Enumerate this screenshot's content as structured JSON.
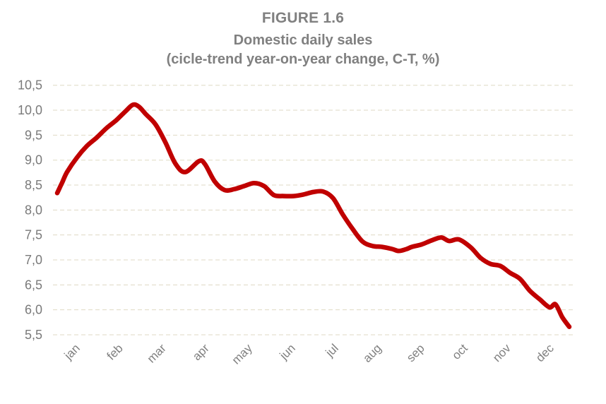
{
  "header": {
    "figure_label": "FIGURE 1.6",
    "title": "Domestic daily sales",
    "subtitle": "(cicle-trend year-on-year change, C-T, %)"
  },
  "colors": {
    "line": "#C00000",
    "text_gray": "#808080",
    "tick_gray": "#7a7a7a",
    "gridline": "#DFDAC4",
    "background": "#FFFFFF"
  },
  "chart_data": {
    "type": "line",
    "title": "FIGURE 1.6",
    "subtitle": "Domestic daily sales (cicle-trend year-on-year change, C-T, %)",
    "xlabel": "",
    "ylabel": "",
    "x_categories": [
      "jan",
      "feb",
      "mar",
      "apr",
      "may",
      "jun",
      "jul",
      "aug",
      "sep",
      "oct",
      "nov",
      "dec"
    ],
    "y_tick_labels": [
      "10,5",
      "10,0",
      "9,5",
      "9,0",
      "8,5",
      "8,0",
      "7,5",
      "7,0",
      "6,5",
      "6,0",
      "5,5"
    ],
    "ylim": [
      5.5,
      10.5
    ],
    "grid": "horizontal-dashed",
    "legend_position": "none",
    "decimal_separator": ",",
    "series": [
      {
        "name": "Domestic daily sales, cycle-trend year-on-year change (%)",
        "x_unit": "week of year",
        "points": [
          [
            1,
            8.34
          ],
          [
            1.5,
            8.55
          ],
          [
            2,
            8.76
          ],
          [
            3,
            9.05
          ],
          [
            4,
            9.28
          ],
          [
            5,
            9.45
          ],
          [
            6,
            9.64
          ],
          [
            7,
            9.8
          ],
          [
            8,
            9.99
          ],
          [
            8.7,
            10.11
          ],
          [
            9.3,
            10.07
          ],
          [
            10,
            9.92
          ],
          [
            11,
            9.71
          ],
          [
            12,
            9.35
          ],
          [
            13,
            8.93
          ],
          [
            14,
            8.76
          ],
          [
            15.4,
            8.98
          ],
          [
            16,
            8.92
          ],
          [
            17,
            8.57
          ],
          [
            18,
            8.4
          ],
          [
            19,
            8.42
          ],
          [
            20,
            8.48
          ],
          [
            21,
            8.54
          ],
          [
            22,
            8.48
          ],
          [
            23,
            8.3
          ],
          [
            24,
            8.28
          ],
          [
            25,
            8.28
          ],
          [
            26,
            8.31
          ],
          [
            27,
            8.36
          ],
          [
            28,
            8.37
          ],
          [
            29,
            8.24
          ],
          [
            30,
            7.91
          ],
          [
            31,
            7.62
          ],
          [
            32,
            7.37
          ],
          [
            33,
            7.28
          ],
          [
            34,
            7.26
          ],
          [
            35,
            7.22
          ],
          [
            35.7,
            7.18
          ],
          [
            36.5,
            7.22
          ],
          [
            37,
            7.26
          ],
          [
            38,
            7.31
          ],
          [
            39,
            7.39
          ],
          [
            40,
            7.45
          ],
          [
            40.8,
            7.38
          ],
          [
            41.8,
            7.41
          ],
          [
            43,
            7.25
          ],
          [
            44,
            7.04
          ],
          [
            45,
            6.92
          ],
          [
            46,
            6.88
          ],
          [
            47,
            6.74
          ],
          [
            48,
            6.62
          ],
          [
            49,
            6.38
          ],
          [
            50,
            6.21
          ],
          [
            51,
            6.05
          ],
          [
            51.6,
            6.11
          ],
          [
            52.3,
            5.85
          ],
          [
            53,
            5.66
          ]
        ]
      }
    ]
  }
}
